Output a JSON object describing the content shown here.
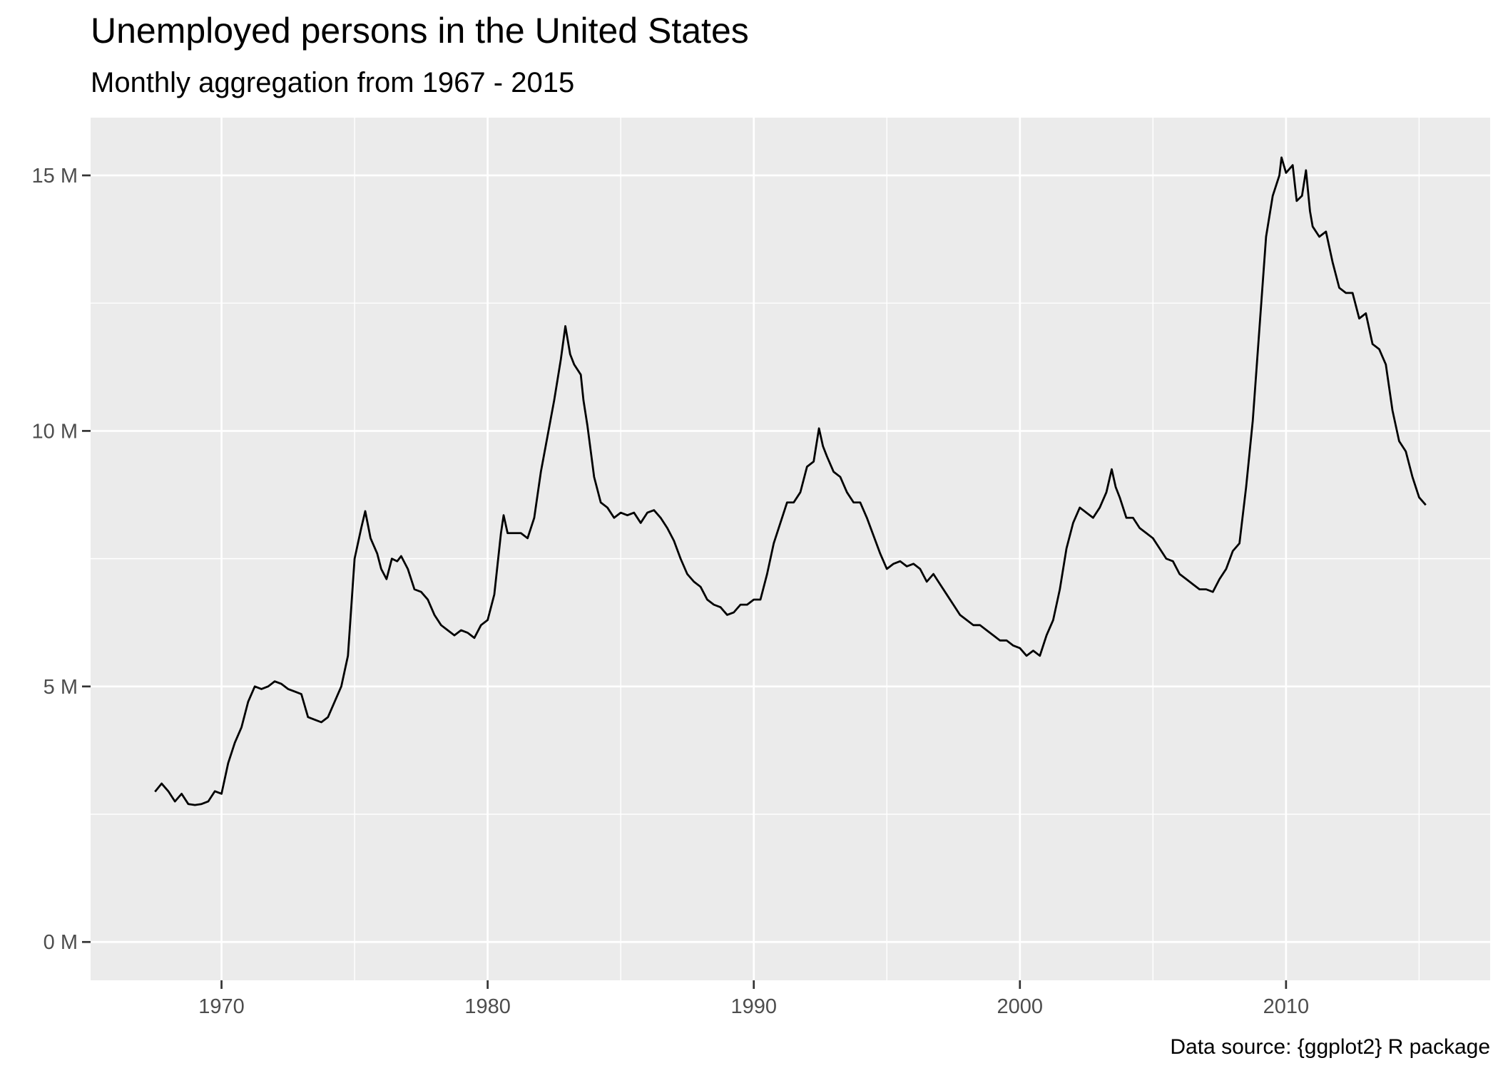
{
  "chart_data": {
    "type": "line",
    "title": "Unemployed persons in the United States",
    "subtitle": "Monthly aggregation from 1967 - 2015",
    "caption": "Data source: {ggplot2} R package",
    "color": "#000000",
    "grid": true,
    "xlim": [
      1965.08,
      2017.67
    ],
    "ylim": [
      -0.75,
      16.13
    ],
    "xticks": [
      1970,
      1980,
      1990,
      2000,
      2010
    ],
    "yticks": [
      {
        "value": 0,
        "label": "0 M"
      },
      {
        "value": 5,
        "label": "5 M"
      },
      {
        "value": 10,
        "label": "10 M"
      },
      {
        "value": 15,
        "label": "15 M"
      }
    ],
    "x": [
      1967.5,
      1967.75,
      1968.0,
      1968.25,
      1968.5,
      1968.75,
      1969.0,
      1969.25,
      1969.5,
      1969.75,
      1970.0,
      1970.25,
      1970.5,
      1970.75,
      1971.0,
      1971.25,
      1971.5,
      1971.75,
      1972.0,
      1972.25,
      1972.5,
      1972.75,
      1973.0,
      1973.25,
      1973.5,
      1973.75,
      1974.0,
      1974.25,
      1974.5,
      1974.75,
      1975.0,
      1975.25,
      1975.4,
      1975.6,
      1975.85,
      1976.0,
      1976.2,
      1976.4,
      1976.6,
      1976.75,
      1977.0,
      1977.25,
      1977.5,
      1977.75,
      1978.0,
      1978.25,
      1978.5,
      1978.75,
      1979.0,
      1979.25,
      1979.5,
      1979.75,
      1980.0,
      1980.25,
      1980.5,
      1980.6,
      1980.75,
      1981.0,
      1981.25,
      1981.5,
      1981.75,
      1982.0,
      1982.25,
      1982.5,
      1982.75,
      1982.92,
      1983.1,
      1983.25,
      1983.5,
      1983.6,
      1983.75,
      1984.0,
      1984.25,
      1984.5,
      1984.75,
      1985.0,
      1985.25,
      1985.5,
      1985.75,
      1986.0,
      1986.25,
      1986.5,
      1986.75,
      1987.0,
      1987.25,
      1987.5,
      1987.75,
      1988.0,
      1988.25,
      1988.5,
      1988.75,
      1989.0,
      1989.25,
      1989.5,
      1989.75,
      1990.0,
      1990.25,
      1990.5,
      1990.75,
      1991.0,
      1991.25,
      1991.5,
      1991.75,
      1992.0,
      1992.25,
      1992.45,
      1992.6,
      1992.75,
      1993.0,
      1993.25,
      1993.5,
      1993.75,
      1994.0,
      1994.25,
      1994.5,
      1994.75,
      1995.0,
      1995.25,
      1995.5,
      1995.75,
      1996.0,
      1996.25,
      1996.5,
      1996.75,
      1997.0,
      1997.25,
      1997.5,
      1997.75,
      1998.0,
      1998.25,
      1998.5,
      1998.75,
      1999.0,
      1999.25,
      1999.5,
      1999.75,
      2000.0,
      2000.25,
      2000.5,
      2000.75,
      2001.0,
      2001.25,
      2001.5,
      2001.75,
      2002.0,
      2002.25,
      2002.5,
      2002.75,
      2003.0,
      2003.25,
      2003.45,
      2003.6,
      2003.75,
      2004.0,
      2004.25,
      2004.5,
      2004.75,
      2005.0,
      2005.25,
      2005.5,
      2005.75,
      2006.0,
      2006.25,
      2006.5,
      2006.75,
      2007.0,
      2007.25,
      2007.5,
      2007.75,
      2008.0,
      2008.25,
      2008.5,
      2008.75,
      2009.0,
      2009.25,
      2009.5,
      2009.75,
      2009.83,
      2010.0,
      2010.25,
      2010.4,
      2010.6,
      2010.75,
      2010.9,
      2011.0,
      2011.25,
      2011.5,
      2011.75,
      2012.0,
      2012.25,
      2012.5,
      2012.75,
      2013.0,
      2013.25,
      2013.5,
      2013.75,
      2014.0,
      2014.25,
      2014.5,
      2014.75,
      2015.0,
      2015.25
    ],
    "values": [
      2.94,
      3.1,
      2.95,
      2.75,
      2.9,
      2.7,
      2.68,
      2.7,
      2.75,
      2.95,
      2.9,
      3.5,
      3.9,
      4.2,
      4.7,
      5.0,
      4.95,
      5.0,
      5.1,
      5.05,
      4.95,
      4.9,
      4.85,
      4.4,
      4.35,
      4.3,
      4.4,
      4.7,
      5.0,
      5.6,
      7.5,
      8.1,
      8.43,
      7.9,
      7.6,
      7.3,
      7.1,
      7.5,
      7.45,
      7.55,
      7.3,
      6.9,
      6.85,
      6.7,
      6.4,
      6.2,
      6.1,
      6.0,
      6.1,
      6.05,
      5.95,
      6.2,
      6.3,
      6.8,
      8.0,
      8.35,
      8.0,
      8.0,
      8.0,
      7.9,
      8.3,
      9.2,
      9.9,
      10.6,
      11.4,
      12.05,
      11.5,
      11.3,
      11.1,
      10.6,
      10.1,
      9.1,
      8.6,
      8.5,
      8.3,
      8.4,
      8.35,
      8.4,
      8.2,
      8.4,
      8.45,
      8.3,
      8.1,
      7.85,
      7.5,
      7.2,
      7.05,
      6.95,
      6.7,
      6.6,
      6.55,
      6.4,
      6.45,
      6.6,
      6.6,
      6.7,
      6.7,
      7.2,
      7.8,
      8.2,
      8.6,
      8.6,
      8.8,
      9.3,
      9.4,
      10.05,
      9.7,
      9.5,
      9.2,
      9.1,
      8.8,
      8.6,
      8.6,
      8.3,
      7.95,
      7.6,
      7.3,
      7.4,
      7.45,
      7.35,
      7.4,
      7.3,
      7.05,
      7.2,
      7.0,
      6.8,
      6.6,
      6.4,
      6.3,
      6.2,
      6.2,
      6.1,
      6.0,
      5.9,
      5.9,
      5.8,
      5.75,
      5.6,
      5.7,
      5.6,
      6.0,
      6.3,
      6.9,
      7.7,
      8.2,
      8.5,
      8.4,
      8.3,
      8.5,
      8.8,
      9.25,
      8.9,
      8.7,
      8.3,
      8.3,
      8.1,
      8.0,
      7.9,
      7.7,
      7.5,
      7.45,
      7.2,
      7.1,
      7.0,
      6.9,
      6.9,
      6.85,
      7.1,
      7.3,
      7.65,
      7.8,
      8.9,
      10.2,
      12.0,
      13.8,
      14.6,
      15.0,
      15.35,
      15.05,
      15.2,
      14.5,
      14.6,
      15.1,
      14.3,
      14.0,
      13.8,
      13.9,
      13.3,
      12.8,
      12.7,
      12.7,
      12.2,
      12.3,
      11.7,
      11.6,
      11.3,
      10.4,
      9.8,
      9.6,
      9.1,
      8.7,
      8.55
    ]
  }
}
